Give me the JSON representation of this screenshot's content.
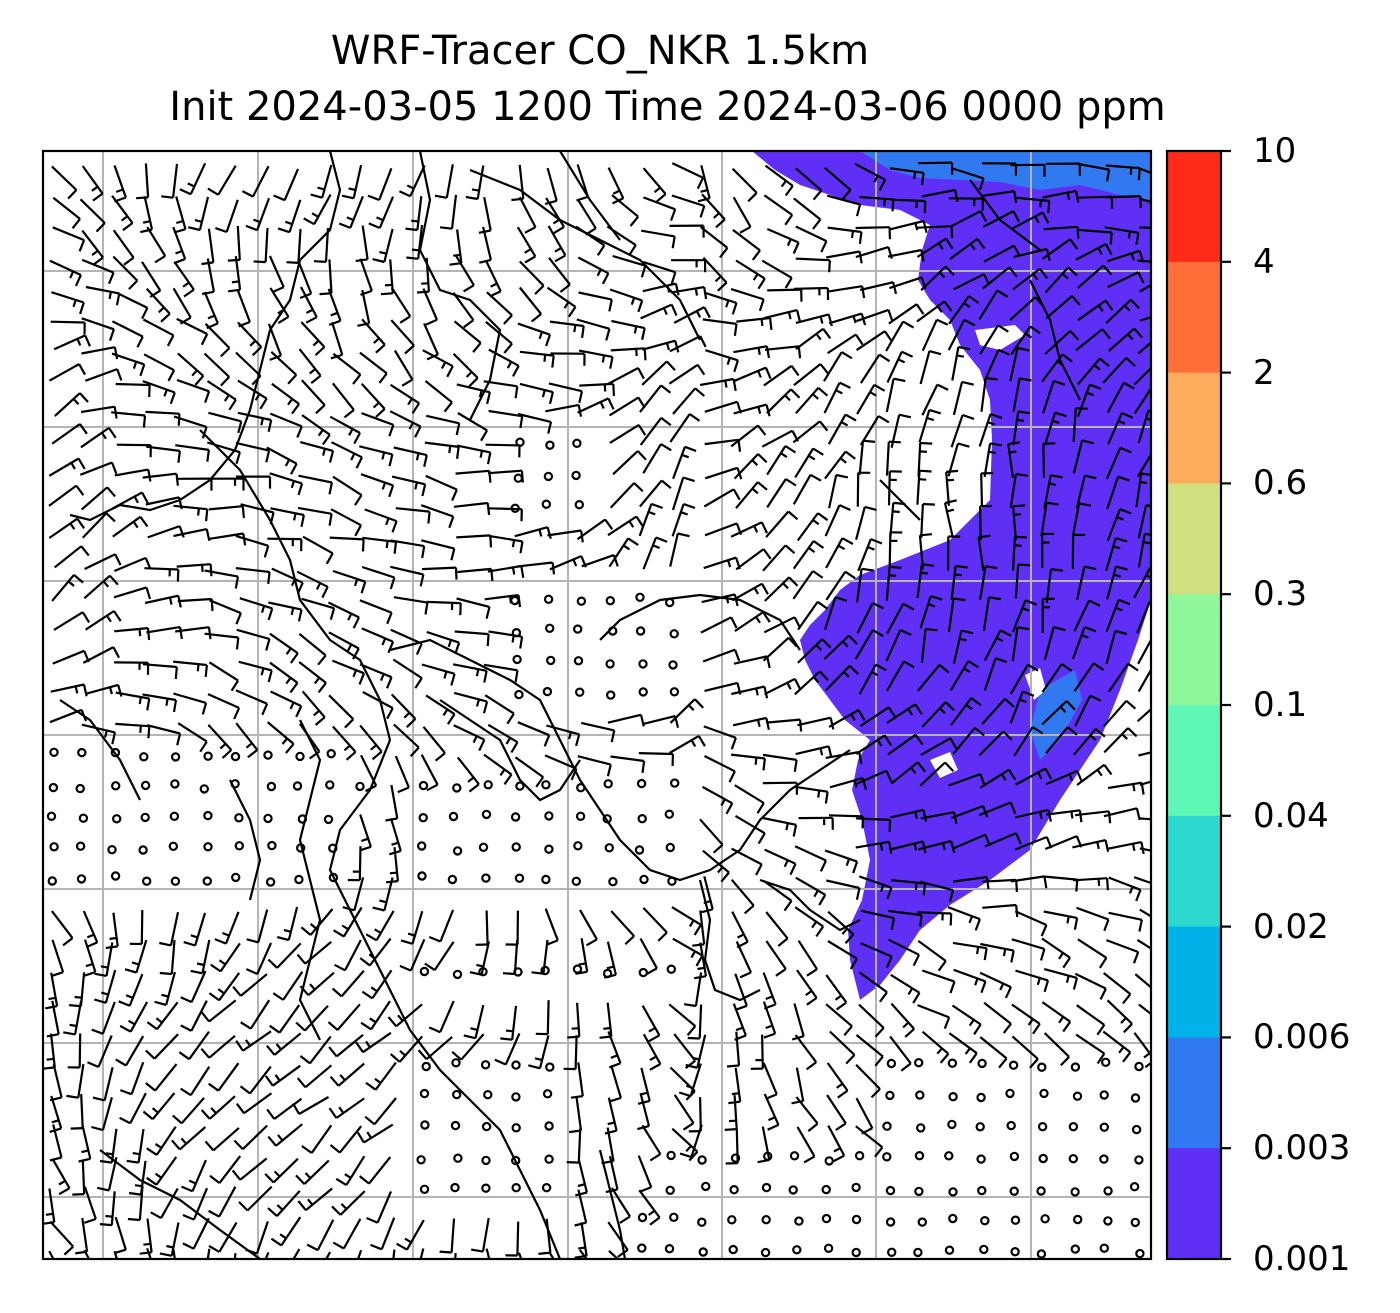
{
  "title": {
    "line1": "WRF-Tracer CO_NKR 1.5km",
    "line2": "Init 2024-03-05 1200 Time 2024-03-06 0000 ppm"
  },
  "colorbar": {
    "levels": [
      "10",
      "4",
      "2",
      "0.6",
      "0.3",
      "0.1",
      "0.04",
      "0.02",
      "0.006",
      "0.003",
      "0.001"
    ],
    "colors": [
      "#ff2a17",
      "#ff6e38",
      "#fdab5c",
      "#d0e080",
      "#8ff79a",
      "#5ff7b6",
      "#2dd9cf",
      "#00b2e8",
      "#3179f0",
      "#5f2ff5"
    ]
  },
  "map": {
    "plume_colors": {
      "low": "#5f2ff5",
      "mid": "#3179f0",
      "high": "#00b2e8"
    },
    "gridline_color": "#b4b4b4",
    "coastline_color": "#000000",
    "barb_color": "#000000"
  }
}
